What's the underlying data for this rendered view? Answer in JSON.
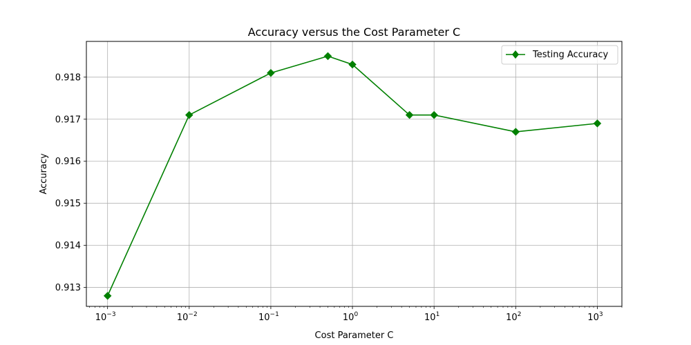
{
  "chart_data": {
    "type": "line",
    "title": "Accuracy versus the Cost Parameter C",
    "xlabel": "Cost Parameter C",
    "ylabel": "Accuracy",
    "xscale": "log",
    "xlim": [
      0.00055,
      2000
    ],
    "ylim": [
      0.91255,
      0.91885
    ],
    "x_tick_values": [
      0.001,
      0.01,
      0.1,
      1,
      10,
      100,
      1000
    ],
    "x_tick_labels": [
      {
        "base": "10",
        "exp": "−3"
      },
      {
        "base": "10",
        "exp": "−2"
      },
      {
        "base": "10",
        "exp": "−1"
      },
      {
        "base": "10",
        "exp": "0"
      },
      {
        "base": "10",
        "exp": "1"
      },
      {
        "base": "10",
        "exp": "2"
      },
      {
        "base": "10",
        "exp": "3"
      }
    ],
    "y_ticks": [
      0.913,
      0.914,
      0.915,
      0.916,
      0.917,
      0.918
    ],
    "y_tick_labels": [
      "0.913",
      "0.914",
      "0.915",
      "0.916",
      "0.917",
      "0.918"
    ],
    "grid": true,
    "legend_position": "top-right",
    "series": [
      {
        "name": "Testing Accuracy",
        "color": "#008000",
        "marker": "diamond",
        "x": [
          0.001,
          0.01,
          0.1,
          0.5,
          1,
          5,
          10,
          100,
          1000
        ],
        "y": [
          0.9128,
          0.9171,
          0.9181,
          0.9185,
          0.9183,
          0.9171,
          0.9171,
          0.9167,
          0.9169
        ]
      }
    ]
  }
}
